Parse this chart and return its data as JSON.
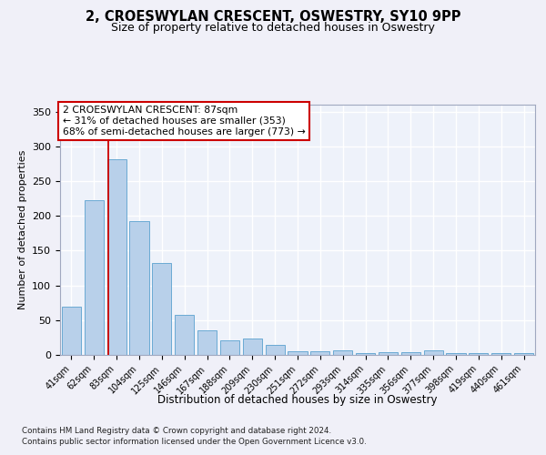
{
  "title_line1": "2, CROESWYLAN CRESCENT, OSWESTRY, SY10 9PP",
  "title_line2": "Size of property relative to detached houses in Oswestry",
  "xlabel": "Distribution of detached houses by size in Oswestry",
  "ylabel": "Number of detached properties",
  "categories": [
    "41sqm",
    "62sqm",
    "83sqm",
    "104sqm",
    "125sqm",
    "146sqm",
    "167sqm",
    "188sqm",
    "209sqm",
    "230sqm",
    "251sqm",
    "272sqm",
    "293sqm",
    "314sqm",
    "335sqm",
    "356sqm",
    "377sqm",
    "398sqm",
    "419sqm",
    "440sqm",
    "461sqm"
  ],
  "values": [
    70,
    222,
    281,
    192,
    132,
    58,
    35,
    21,
    23,
    15,
    5,
    5,
    6,
    2,
    4,
    4,
    6,
    2,
    3,
    2,
    3
  ],
  "bar_color": "#b8d0ea",
  "bar_edge_color": "#6aaad4",
  "background_color": "#eef2fa",
  "grid_color": "#ffffff",
  "property_bin_index": 2,
  "annotation_title": "2 CROESWYLAN CRESCENT: 87sqm",
  "annotation_line1": "← 31% of detached houses are smaller (353)",
  "annotation_line2": "68% of semi-detached houses are larger (773) →",
  "red_line_color": "#cc0000",
  "annotation_box_edge": "#cc0000",
  "ylim": [
    0,
    360
  ],
  "yticks": [
    0,
    50,
    100,
    150,
    200,
    250,
    300,
    350
  ],
  "footer1": "Contains HM Land Registry data © Crown copyright and database right 2024.",
  "footer2": "Contains public sector information licensed under the Open Government Licence v3.0."
}
